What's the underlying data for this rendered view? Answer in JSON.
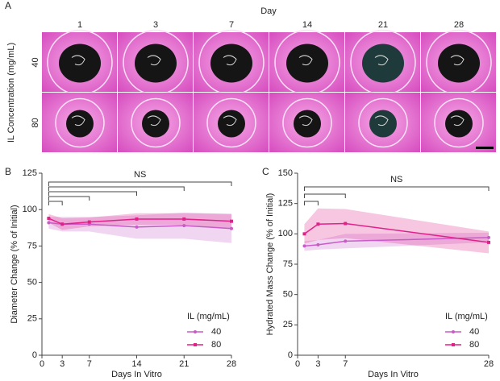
{
  "panel_a": {
    "label": "A",
    "column_title": "Day",
    "columns": [
      "1",
      "3",
      "7",
      "14",
      "21",
      "28"
    ],
    "row_title": "IL Concentration (mg/mL)",
    "rows": [
      "40",
      "80"
    ]
  },
  "chart_data": [
    {
      "type": "line",
      "label": "B",
      "x_label": "Days In Vitro",
      "y_label": "Diameter Change (% of Initial)",
      "x": [
        1,
        3,
        7,
        14,
        21,
        28
      ],
      "xlim": [
        0,
        28
      ],
      "xticks": [
        0,
        3,
        7,
        14,
        21,
        28
      ],
      "ylim": [
        0,
        125
      ],
      "yticks": [
        0,
        25,
        50,
        75,
        100,
        125
      ],
      "series": [
        {
          "name": "40",
          "color": "#c85bc8",
          "values": [
            91,
            90,
            90,
            88,
            89,
            87
          ],
          "errors": [
            4,
            5,
            5,
            8,
            9,
            10
          ]
        },
        {
          "name": "80",
          "color": "#e0218a",
          "values": [
            94,
            90,
            91.5,
            93.5,
            93.5,
            92
          ],
          "errors": [
            3,
            4,
            3,
            4,
            4,
            5
          ]
        }
      ],
      "brackets": [
        [
          1,
          28
        ],
        [
          1,
          21
        ],
        [
          1,
          14
        ],
        [
          1,
          7
        ],
        [
          1,
          3
        ]
      ],
      "annotation": "NS",
      "legend_title": "IL (mg/mL)"
    },
    {
      "type": "line",
      "label": "C",
      "x_label": "Days In Vitro",
      "y_label": "Hydrated Mass Change (% of Initial)",
      "x": [
        1,
        3,
        7,
        28
      ],
      "xlim": [
        0,
        28
      ],
      "xticks": [
        0,
        3,
        7,
        28
      ],
      "ylim": [
        0,
        150
      ],
      "yticks": [
        0,
        25,
        50,
        75,
        100,
        125,
        150
      ],
      "series": [
        {
          "name": "40",
          "color": "#c85bc8",
          "values": [
            90,
            91,
            94,
            97
          ],
          "errors": [
            4,
            4,
            6,
            4
          ]
        },
        {
          "name": "80",
          "color": "#e0218a",
          "values": [
            100,
            108,
            108.5,
            93
          ],
          "errors": [
            8,
            13,
            12,
            9
          ]
        }
      ],
      "brackets": [
        [
          1,
          28
        ],
        [
          1,
          7
        ],
        [
          1,
          3
        ]
      ],
      "annotation": "NS",
      "legend_title": "IL (mg/mL)"
    }
  ]
}
